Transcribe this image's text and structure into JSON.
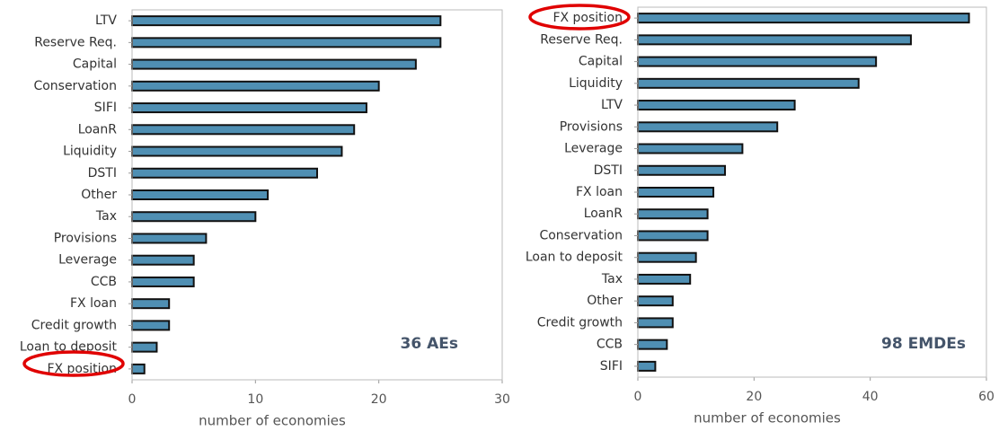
{
  "chart_data": [
    {
      "type": "hbar",
      "annotation": "36 AEs",
      "xlabel": "number of economies",
      "color": "#4f8fb3",
      "categories": [
        "LTV",
        "Reserve Req.",
        "Capital",
        "Conservation",
        "SIFI",
        "LoanR",
        "Liquidity",
        "DSTI",
        "Other",
        "Tax",
        "Provisions",
        "Leverage",
        "CCB",
        "FX loan",
        "Credit growth",
        "Loan to deposit",
        "FX position"
      ],
      "values": [
        25,
        25,
        23,
        20,
        19,
        18,
        17,
        15,
        11,
        10,
        6,
        5,
        5,
        3,
        3,
        2,
        1
      ],
      "xlim": [
        0,
        30
      ],
      "xticks": [
        0,
        10,
        20,
        30
      ]
    },
    {
      "type": "hbar",
      "annotation": "98 EMDEs",
      "xlabel": "number of economies",
      "color": "#4f8fb3",
      "categories": [
        "FX position",
        "Reserve Req.",
        "Capital",
        "Liquidity",
        "LTV",
        "Provisions",
        "Leverage",
        "DSTI",
        "FX loan",
        "LoanR",
        "Conservation",
        "Loan to deposit",
        "Tax",
        "Other",
        "Credit growth",
        "CCB",
        "SIFI"
      ],
      "values": [
        57,
        47,
        41,
        38,
        27,
        24,
        18,
        15,
        13,
        12,
        12,
        10,
        9,
        6,
        6,
        5,
        3
      ],
      "xlim": [
        0,
        60
      ],
      "xticks": [
        0,
        20,
        40,
        60
      ]
    }
  ]
}
